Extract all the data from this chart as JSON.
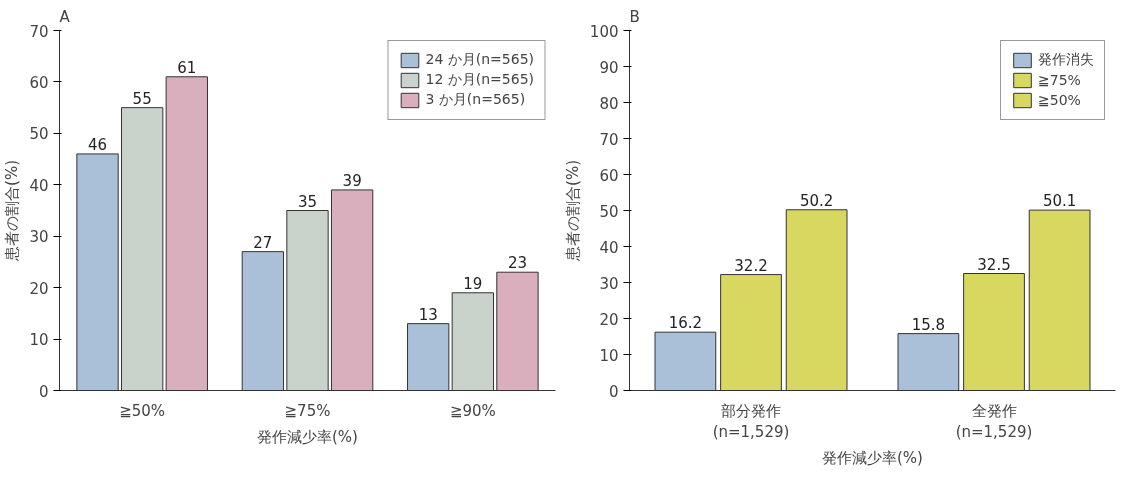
{
  "chart_data": [
    {
      "type": "bar",
      "title": "A",
      "xlabel": "発作減少率(%)",
      "ylabel": "患者の割合(%)",
      "categories": [
        "≧50%",
        "≧75%",
        "≧90%"
      ],
      "series": [
        {
          "name": "24 か月(n=565)",
          "color": "#a9c0d8",
          "values": [
            46,
            27,
            13
          ]
        },
        {
          "name": "12 か月(n=565)",
          "color": "#c9d3cc",
          "values": [
            55,
            35,
            19
          ]
        },
        {
          "name": "3 か月(n=565)",
          "color": "#d9aebd",
          "values": [
            61,
            39,
            23
          ]
        }
      ],
      "ylim": [
        0,
        70
      ],
      "yticks": [
        0,
        10,
        20,
        30,
        40,
        50,
        60,
        70
      ],
      "grid": false,
      "legend": "top right",
      "data_labels": true
    },
    {
      "type": "bar",
      "title": "B",
      "xlabel": "発作減少率(%)",
      "ylabel": "患者の割合(%)",
      "categories": [
        "部分発作\n(n=1,529)",
        "全発作\n(n=1,529)"
      ],
      "series": [
        {
          "name": "発作消失",
          "color": "#a9c0d8",
          "values": [
            16.2,
            15.8
          ]
        },
        {
          "name": "≧75%",
          "color": "#d8d860",
          "values": [
            32.2,
            32.5
          ]
        },
        {
          "name": "≧50%",
          "color": "#d8d860",
          "values": [
            50.2,
            50.1
          ]
        }
      ],
      "ylim": [
        0,
        100
      ],
      "yticks": [
        0,
        10,
        20,
        30,
        40,
        50,
        60,
        70,
        80,
        90,
        100
      ],
      "grid": false,
      "legend": "top right",
      "data_labels": true
    }
  ]
}
